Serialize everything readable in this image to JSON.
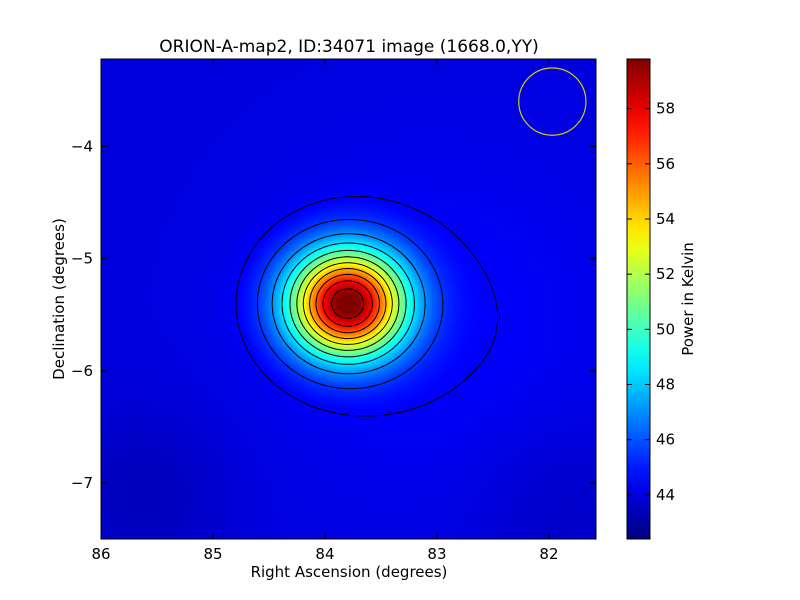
{
  "chart_data": {
    "type": "heatmap",
    "title": "ORION-A-map2, ID:34071 image (1668.0,YY)",
    "xlabel": "Right Ascension (degrees)",
    "ylabel": "Declination (degrees)",
    "xlim": [
      86.0,
      81.58
    ],
    "ylim": [
      -7.5,
      -3.22
    ],
    "xticks": [
      86,
      85,
      84,
      83,
      82
    ],
    "xtick_labels": [
      "86",
      "85",
      "84",
      "83",
      "82"
    ],
    "yticks": [
      -4,
      -5,
      -6,
      -7
    ],
    "ytick_labels": [
      "−4",
      "−5",
      "−6",
      "−7"
    ],
    "grid": false,
    "colormap": "jet",
    "colorbar": {
      "label": "Power in Kelvin",
      "range": [
        42.4,
        59.8
      ],
      "ticks": [
        44,
        46,
        48,
        50,
        52,
        54,
        56,
        58
      ],
      "tick_labels": [
        "44",
        "46",
        "48",
        "50",
        "52",
        "54",
        "56",
        "58"
      ]
    },
    "background_level": 44.0,
    "source": {
      "ra": 83.8,
      "dec": -5.4,
      "peak": 59.8,
      "sigma_ra": 0.36,
      "sigma_dec": 0.33
    },
    "contour_levels": [
      44.5,
      45.5,
      47,
      48.5,
      50,
      51.5,
      53,
      54.5,
      56,
      57.5,
      59
    ],
    "beam_circle": {
      "ra": 81.97,
      "dec": -3.6,
      "radius_deg": 0.3,
      "color": "#d6c81a"
    }
  }
}
